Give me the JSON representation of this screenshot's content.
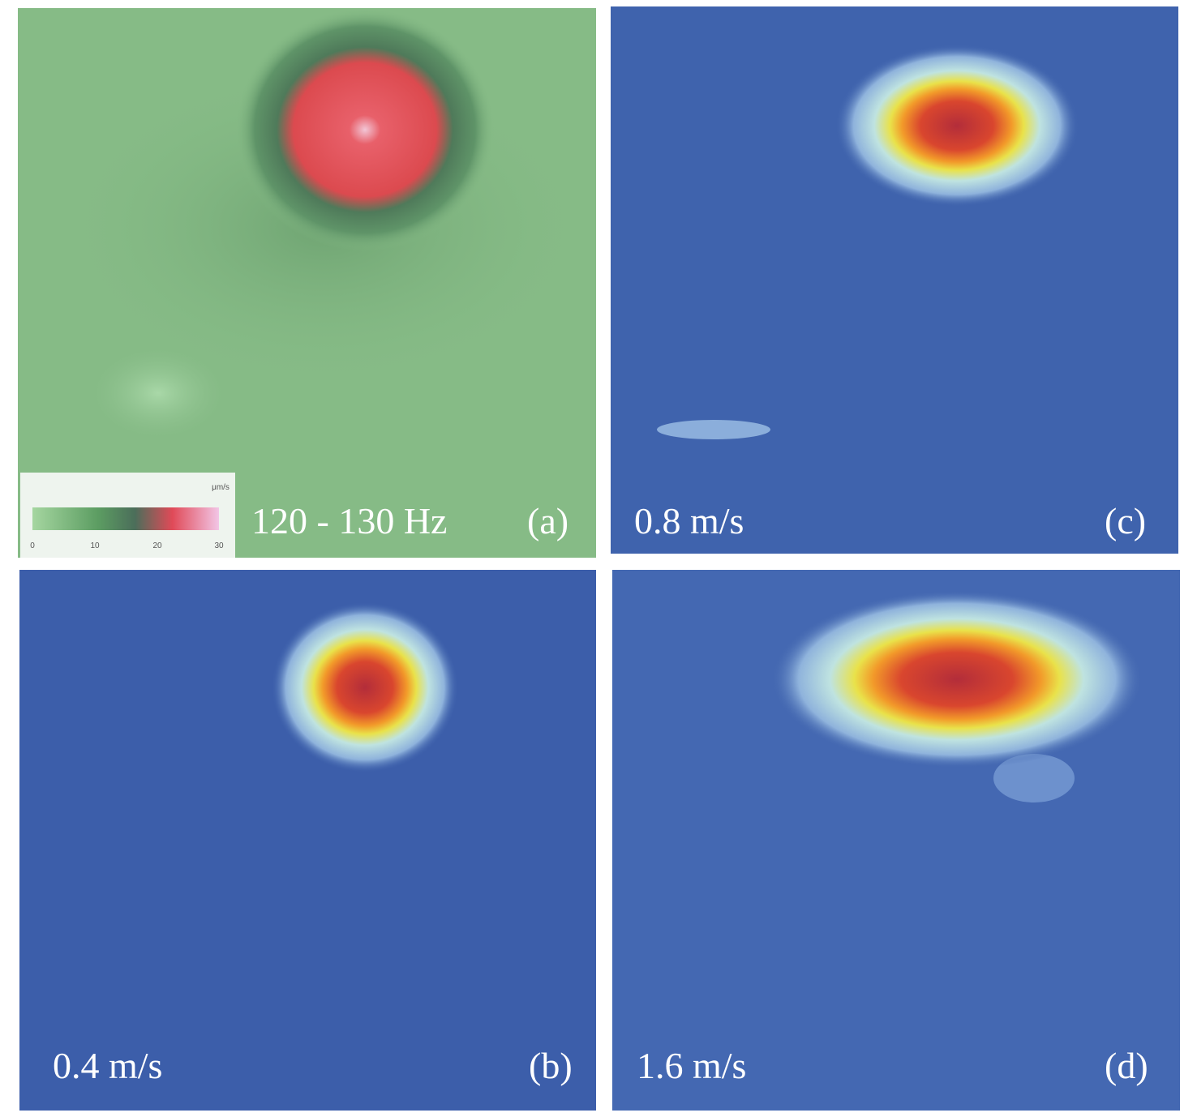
{
  "panels": [
    {
      "caption": "120 - 130 Hz",
      "label": "(a)",
      "colorbar": {
        "unit": "μm/s",
        "ticks": [
          0,
          10,
          20,
          30
        ]
      }
    },
    {
      "caption": "0.8 m/s",
      "label": "(c)"
    },
    {
      "caption": "0.4 m/s",
      "label": "(b)"
    },
    {
      "caption": "1.6 m/s",
      "label": "(d)"
    }
  ]
}
